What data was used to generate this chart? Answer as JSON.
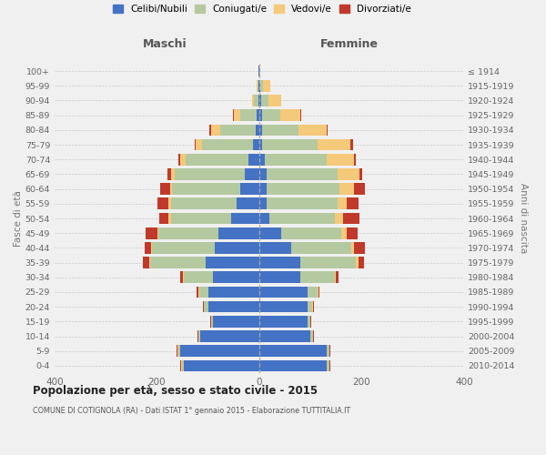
{
  "age_groups": [
    "0-4",
    "5-9",
    "10-14",
    "15-19",
    "20-24",
    "25-29",
    "30-34",
    "35-39",
    "40-44",
    "45-49",
    "50-54",
    "55-59",
    "60-64",
    "65-69",
    "70-74",
    "75-79",
    "80-84",
    "85-89",
    "90-94",
    "95-99",
    "100+"
  ],
  "birth_years": [
    "2010-2014",
    "2005-2009",
    "2000-2004",
    "1995-1999",
    "1990-1994",
    "1985-1989",
    "1980-1984",
    "1975-1979",
    "1970-1974",
    "1965-1969",
    "1960-1964",
    "1955-1959",
    "1950-1954",
    "1945-1949",
    "1940-1944",
    "1935-1939",
    "1930-1934",
    "1925-1929",
    "1920-1924",
    "1915-1919",
    "≤ 1914"
  ],
  "colors": {
    "celibe": "#4472c4",
    "coniugato": "#b5c9a0",
    "vedovo": "#f5c97a",
    "divorziato": "#c0392b"
  },
  "maschi": {
    "celibe": [
      148,
      155,
      115,
      90,
      100,
      100,
      90,
      105,
      88,
      80,
      55,
      45,
      38,
      28,
      22,
      12,
      8,
      5,
      2,
      1,
      1
    ],
    "coniugato": [
      4,
      4,
      4,
      4,
      8,
      18,
      58,
      108,
      122,
      118,
      118,
      128,
      132,
      138,
      122,
      100,
      68,
      32,
      8,
      2,
      0
    ],
    "vedovo": [
      1,
      1,
      1,
      1,
      1,
      2,
      2,
      2,
      2,
      2,
      4,
      5,
      5,
      6,
      10,
      12,
      18,
      12,
      5,
      2,
      0
    ],
    "divorziato": [
      1,
      1,
      1,
      1,
      2,
      2,
      5,
      12,
      12,
      22,
      18,
      22,
      18,
      8,
      5,
      3,
      3,
      2,
      0,
      0,
      0
    ]
  },
  "femmine": {
    "nubile": [
      132,
      132,
      100,
      95,
      95,
      95,
      80,
      80,
      62,
      42,
      20,
      15,
      15,
      15,
      10,
      5,
      5,
      5,
      3,
      2,
      0
    ],
    "coniugata": [
      4,
      4,
      4,
      4,
      8,
      18,
      68,
      108,
      118,
      118,
      128,
      138,
      142,
      138,
      122,
      108,
      72,
      35,
      15,
      5,
      0
    ],
    "vedova": [
      1,
      1,
      1,
      1,
      1,
      2,
      2,
      5,
      5,
      10,
      15,
      18,
      28,
      42,
      52,
      65,
      55,
      40,
      25,
      15,
      2
    ],
    "divorziata": [
      1,
      1,
      1,
      1,
      2,
      2,
      5,
      12,
      22,
      22,
      32,
      22,
      22,
      5,
      5,
      5,
      2,
      2,
      0,
      0,
      0
    ]
  },
  "title": "Popolazione per età, sesso e stato civile - 2015",
  "subtitle": "COMUNE DI COTIGNOLA (RA) - Dati ISTAT 1° gennaio 2015 - Elaborazione TUTTITALIA.IT",
  "xlabel_maschi": "Maschi",
  "xlabel_femmine": "Femmine",
  "ylabel_left": "Fasce di età",
  "ylabel_right": "Anni di nascita",
  "xlim": 400,
  "legend_labels": [
    "Celibi/Nubili",
    "Coniugati/e",
    "Vedovi/e",
    "Divorziati/e"
  ],
  "legend_colors": [
    "#4472c4",
    "#b5c9a0",
    "#f5c97a",
    "#c0392b"
  ],
  "bg_color": "#f0f0f0",
  "bar_height": 0.78
}
